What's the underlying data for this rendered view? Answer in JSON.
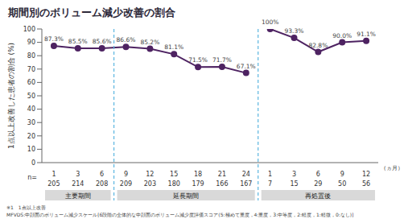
{
  "chart_data": {
    "type": "line",
    "title": "期間別のボリューム減少改善の割合",
    "y_label": "1点以上改善した患者の割合 (%)",
    "x_unit_label": "（ヵ月）",
    "n_label": "n=",
    "categories": [
      "1",
      "3",
      "6",
      "9",
      "12",
      "15",
      "18",
      "21",
      "24",
      "1",
      "3",
      "6",
      "9",
      "12"
    ],
    "n": [
      205,
      214,
      208,
      209,
      203,
      180,
      179,
      166,
      167,
      7,
      15,
      29,
      50,
      56
    ],
    "series": [
      {
        "color": "#4e2362",
        "marker": "circle",
        "values": [
          87.3,
          85.5,
          85.6,
          86.6,
          85.2,
          81.1,
          71.5,
          71.7,
          67.1,
          null,
          null,
          null,
          null,
          null
        ],
        "value_labels": [
          "87.3%",
          "85.5%",
          "85.6%",
          "86.6%",
          "85.2%",
          "81.1%",
          "71.5%",
          "71.7%",
          "67.1%",
          null,
          null,
          null,
          null,
          null
        ]
      },
      {
        "color": "#4e2362",
        "marker": "circle",
        "values": [
          null,
          null,
          null,
          null,
          null,
          null,
          null,
          null,
          null,
          100,
          93.3,
          82.8,
          90,
          91.1
        ],
        "value_labels": [
          null,
          null,
          null,
          null,
          null,
          null,
          null,
          null,
          null,
          "100%",
          "93.3%",
          "82.8%",
          "90.0%",
          "91.1%"
        ]
      }
    ],
    "periods": [
      {
        "label": "主要期間",
        "start": 0,
        "end": 2
      },
      {
        "label": "延長期間",
        "start": 3,
        "end": 8
      },
      {
        "label": "再処置後",
        "start": 9,
        "end": 13
      }
    ],
    "ylim": [
      0,
      100
    ],
    "yticks": [
      0,
      10,
      20,
      30,
      40,
      50,
      60,
      70,
      80,
      90,
      100
    ],
    "grid": false,
    "data_labels": true,
    "footnotes": [
      "※1　1点以上改善",
      "MFVDS:中顔面のボリューム減少スケール[6段階の全体的な中顔面のボリューム減少度評価スコア(5:極めて重度，4:重度，3:中等度，2:軽度，1:軽微，0:なし)]"
    ]
  }
}
